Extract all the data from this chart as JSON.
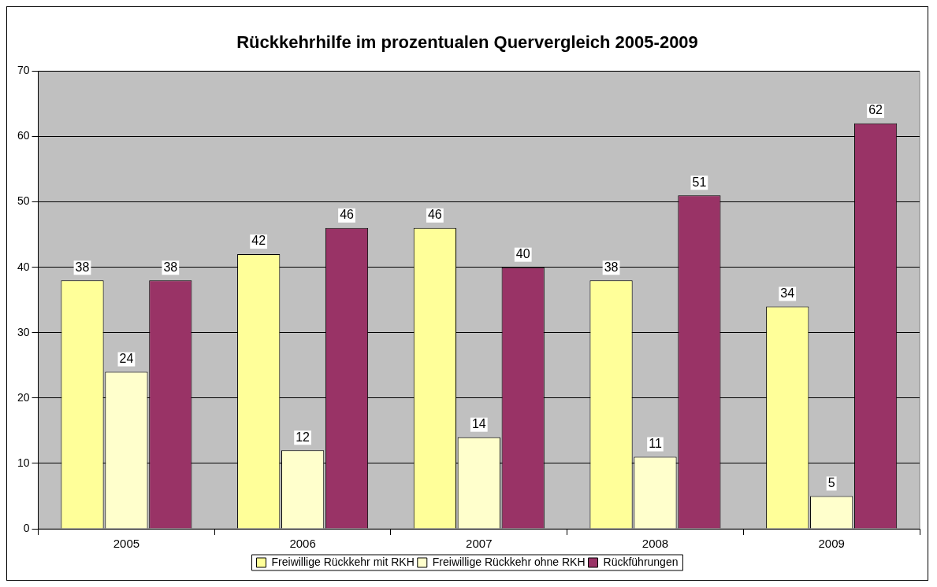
{
  "chart_data": {
    "type": "bar",
    "title": "Rückkehrhilfe im prozentualen Quervergleich 2005-2009",
    "categories": [
      "2005",
      "2006",
      "2007",
      "2008",
      "2009"
    ],
    "series": [
      {
        "name": "Freiwillige Rückkehr mit RKH",
        "color": "#ffff99",
        "values": [
          38,
          42,
          46,
          38,
          34
        ]
      },
      {
        "name": "Freiwillige Rückkehr ohne RKH",
        "color": "#ffffcc",
        "values": [
          24,
          12,
          14,
          11,
          5
        ]
      },
      {
        "name": "Rückführungen",
        "color": "#993366",
        "values": [
          38,
          46,
          40,
          51,
          62
        ]
      }
    ],
    "ylim": [
      0,
      70
    ],
    "yticks": [
      0,
      10,
      20,
      30,
      40,
      50,
      60,
      70
    ],
    "grid": "y",
    "legend": "bottom",
    "data_labels": true
  }
}
